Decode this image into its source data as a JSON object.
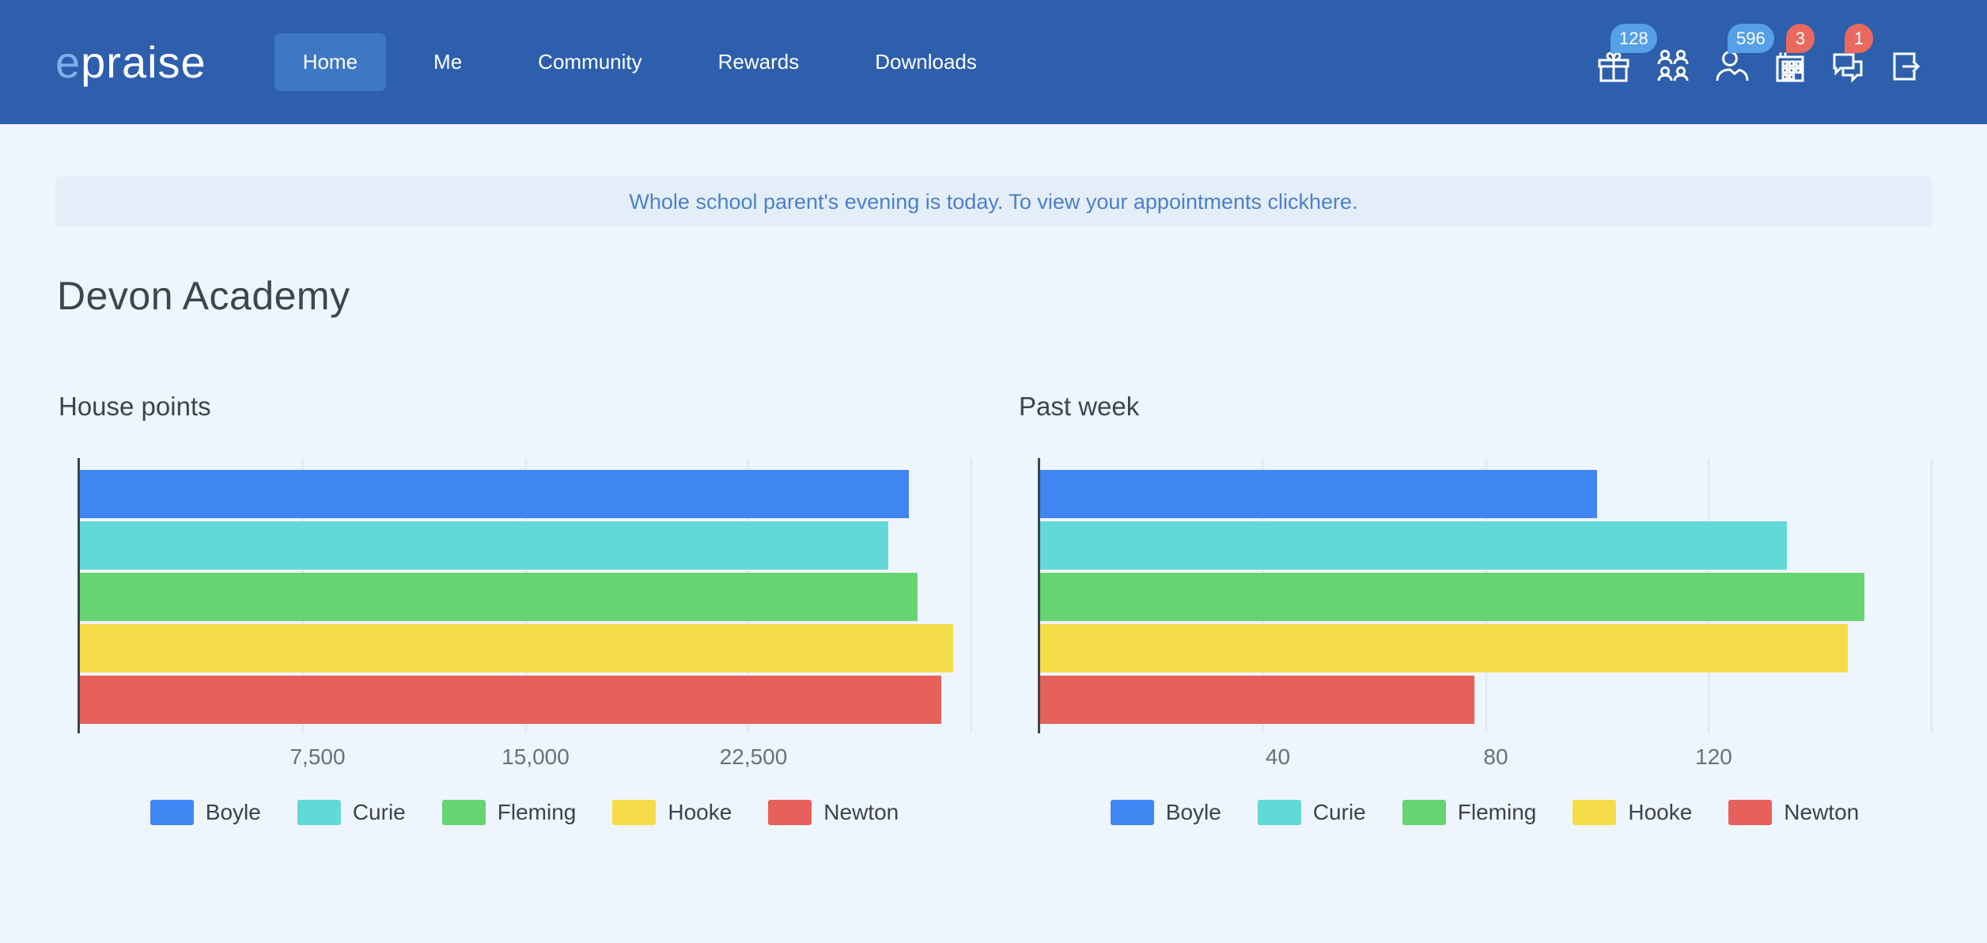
{
  "colors": {
    "header_bg": "#2d5fad",
    "nav_active_bg": "#3f78c2",
    "logo_accent": "#7cb1e9",
    "page_bg": "#eff5fc",
    "banner_bg": "#e4eef9",
    "banner_text": "#4d80c6",
    "badge_blue": "#55a0e6",
    "badge_red": "#e9695f",
    "axis_line": "#3d444b",
    "gridline": "#e1eaf4"
  },
  "header": {
    "logo_accent": "e",
    "logo_rest": "praise",
    "nav": [
      {
        "label": "Home",
        "active": true
      },
      {
        "label": "Me",
        "active": false
      },
      {
        "label": "Community",
        "active": false
      },
      {
        "label": "Rewards",
        "active": false
      },
      {
        "label": "Downloads",
        "active": false
      }
    ],
    "icons": [
      {
        "name": "rewards-gift",
        "badge": "128",
        "badge_color": "#55a0e6"
      },
      {
        "name": "community-people",
        "badge": "",
        "badge_color": ""
      },
      {
        "name": "profile-person",
        "badge": "596",
        "badge_color": "#55a0e6"
      },
      {
        "name": "planner-calendar",
        "badge": "3",
        "badge_color": "#e9695f"
      },
      {
        "name": "messages-chat",
        "badge": "1",
        "badge_color": "#e9695f"
      },
      {
        "name": "logout",
        "badge": "",
        "badge_color": ""
      }
    ]
  },
  "banner": {
    "text_before_link": "Whole school parent's evening is today. To view your appointments click ",
    "link_text": "here",
    "text_after_link": "."
  },
  "page": {
    "title": "Devon Academy"
  },
  "chart_data": [
    {
      "type": "bar",
      "orientation": "horizontal",
      "title": "House points",
      "categories": [
        "Boyle",
        "Curie",
        "Fleming",
        "Hooke",
        "Newton"
      ],
      "values": [
        27900,
        27200,
        28200,
        29400,
        29000
      ],
      "xlim": [
        0,
        30000
      ],
      "ticks": [
        {
          "value": 7500,
          "label": "7,500"
        },
        {
          "value": 15000,
          "label": "15,000"
        },
        {
          "value": 22500,
          "label": "22,500"
        }
      ],
      "gridlines": [
        7500,
        15000,
        22500,
        30000
      ],
      "colors": [
        "#4086f2",
        "#63d8d8",
        "#65d471",
        "#f5dc49",
        "#e6615b"
      ],
      "legend_position": "bottom",
      "grid": true
    },
    {
      "type": "bar",
      "orientation": "horizontal",
      "title": "Past week",
      "categories": [
        "Boyle",
        "Curie",
        "Fleming",
        "Hooke",
        "Newton"
      ],
      "values": [
        100,
        134,
        148,
        145,
        78
      ],
      "xlim": [
        0,
        160
      ],
      "ticks": [
        {
          "value": 40,
          "label": "40"
        },
        {
          "value": 80,
          "label": "80"
        },
        {
          "value": 120,
          "label": "120"
        }
      ],
      "gridlines": [
        40,
        80,
        120,
        160
      ],
      "colors": [
        "#4086f2",
        "#63d8d8",
        "#65d471",
        "#f5dc49",
        "#e6615b"
      ],
      "legend_position": "bottom",
      "grid": true
    }
  ]
}
